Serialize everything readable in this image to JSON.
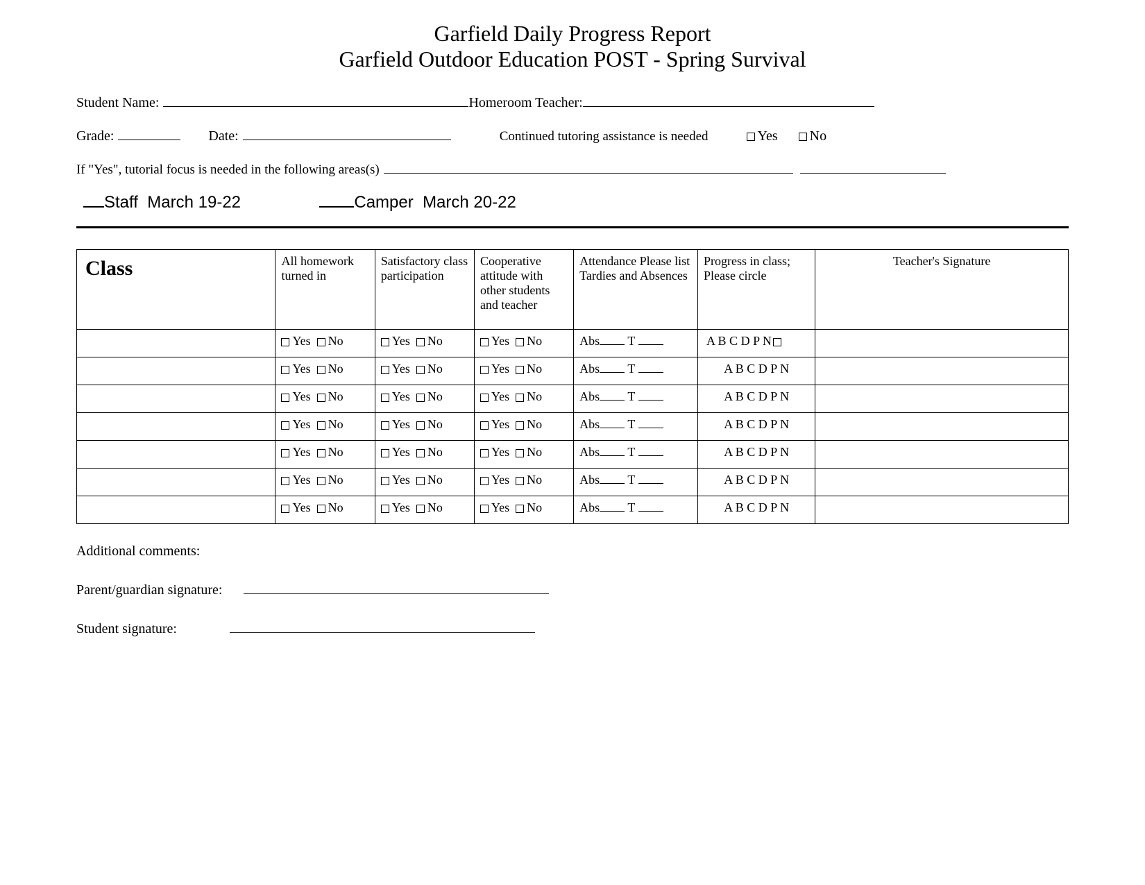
{
  "title": {
    "line1": "Garfield Daily Progress Report",
    "line2": "Garfield Outdoor Education POST - Spring Survival"
  },
  "form": {
    "student_name_label": "Student Name:",
    "homeroom_label": "Homeroom Teacher:",
    "grade_label": "Grade:",
    "date_label": "Date:",
    "tutoring_text": "Continued tutoring assistance is needed",
    "yes_label": "Yes",
    "no_label": "No",
    "tutorial_focus_label": "If \"Yes\", tutorial focus is needed in the following areas(s)"
  },
  "roles": {
    "staff_label": "Staff",
    "staff_dates": "March 19-22",
    "camper_label": "Camper",
    "camper_dates": "March 20-22"
  },
  "table": {
    "headers": {
      "class": "Class",
      "homework": "All homework turned in",
      "satisfactory": "Satisfactory class participation",
      "cooperative": "Cooperative attitude with other students and teacher",
      "attendance": "Attendance Please list Tardies and Absences",
      "progress": "Progress in class;\nPlease circle",
      "signature": "Teacher's Signature"
    },
    "cell_text": {
      "yes_no": "Yes",
      "no": "No",
      "abs_label": "Abs",
      "t_label": "T",
      "progress_letters": "A B C D P N"
    },
    "row_count": 7
  },
  "footer": {
    "comments_label": "Additional comments:",
    "parent_sig_label": "Parent/guardian signature:",
    "student_sig_label": "Student signature:"
  },
  "style": {
    "background_color": "#ffffff",
    "text_color": "#000000",
    "border_color": "#000000",
    "title_fontsize": 32,
    "body_fontsize": 20,
    "table_fontsize": 18,
    "class_header_fontsize": 30,
    "role_fontsize": 24,
    "font_family_body": "Times New Roman",
    "font_family_roles": "Arial"
  }
}
